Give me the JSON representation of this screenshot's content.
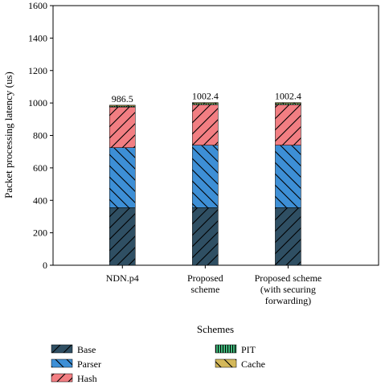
{
  "chart_data": {
    "type": "bar",
    "stacked": true,
    "xlabel": "Schemes",
    "ylabel": "Packet processing latency (us)",
    "ylim": [
      0,
      1600
    ],
    "yticks": [
      0,
      200,
      400,
      600,
      800,
      1000,
      1200,
      1400,
      1600
    ],
    "grid": false,
    "legend_position": "bottom",
    "categories": [
      [
        "NDN.p4"
      ],
      [
        "Proposed",
        "scheme"
      ],
      [
        "Proposed scheme",
        "(with securing",
        "forwarding)"
      ]
    ],
    "totals": [
      "986.5",
      "1002.4",
      "1002.4"
    ],
    "series": [
      {
        "name": "Base",
        "values": [
          355,
          355,
          355
        ],
        "color": "#2f4f63",
        "hatch": "forward"
      },
      {
        "name": "Parser",
        "values": [
          370,
          385,
          385
        ],
        "color": "#3d8fd6",
        "hatch": "back"
      },
      {
        "name": "Hash",
        "values": [
          250,
          250,
          250
        ],
        "color": "#f27e82",
        "hatch": "forward"
      },
      {
        "name": "PIT",
        "values": [
          6,
          7,
          7
        ],
        "color": "#3fb87a",
        "hatch": "vertical"
      },
      {
        "name": "Cache",
        "values": [
          5.5,
          5.4,
          5.4
        ],
        "color": "#d4b85a",
        "hatch": "back"
      }
    ]
  }
}
